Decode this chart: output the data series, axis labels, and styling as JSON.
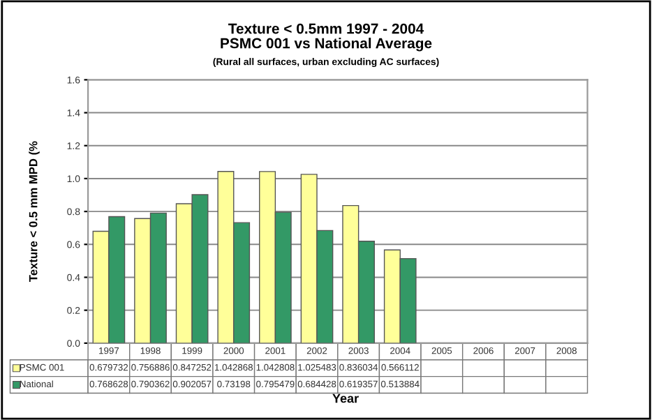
{
  "chart_data": {
    "type": "bar",
    "title": "Texture < 0.5mm 1997 - 2004\nPSMC 001 vs National Average",
    "subtitle": "(Rural all surfaces, urban excluding AC surfaces)",
    "xlabel": "Year",
    "ylabel": "Texture < 0.5 mm MPD (%",
    "categories": [
      "1997",
      "1998",
      "1999",
      "2000",
      "2001",
      "2002",
      "2003",
      "2004",
      "2005",
      "2006",
      "2007",
      "2008"
    ],
    "series": [
      {
        "name": "PSMC 001",
        "color": "#ffff99",
        "values": [
          0.679732,
          0.756886,
          0.847252,
          1.042868,
          1.042808,
          1.025483,
          0.836034,
          0.566112,
          null,
          null,
          null,
          null
        ]
      },
      {
        "name": "National",
        "color": "#339966",
        "values": [
          0.768628,
          0.790362,
          0.902057,
          0.73198,
          0.795479,
          0.684428,
          0.619357,
          0.513884,
          null,
          null,
          null,
          null
        ]
      }
    ],
    "ylim": [
      0,
      1.6
    ],
    "yticks": [
      "0.0",
      "0.2",
      "0.4",
      "0.6",
      "0.8",
      "1.0",
      "1.2",
      "1.4",
      "1.6"
    ],
    "grid": "y",
    "data_labels": true,
    "legend": "bottom"
  }
}
